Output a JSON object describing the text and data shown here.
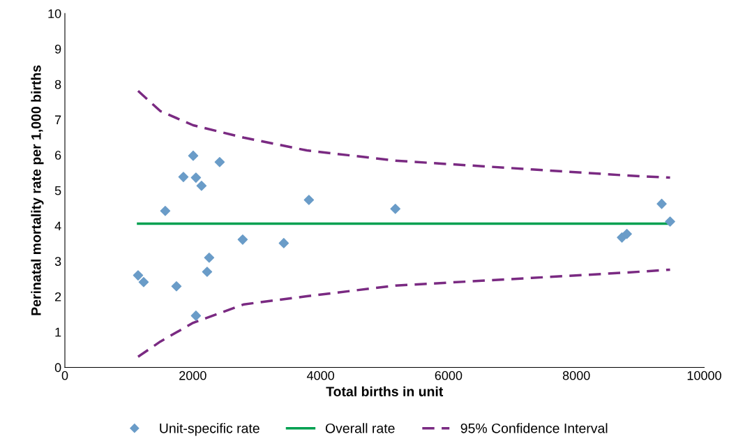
{
  "chart_data": {
    "type": "scatter",
    "xlabel": "Total births in unit",
    "ylabel": "Perinatal mortality rate per 1,000 births",
    "xlim": [
      0,
      10000
    ],
    "ylim": [
      0,
      10
    ],
    "xticks": [
      0,
      2000,
      4000,
      6000,
      8000,
      10000
    ],
    "yticks": [
      0,
      1,
      2,
      3,
      4,
      5,
      6,
      7,
      8,
      9,
      10
    ],
    "grid": false,
    "legend": "bottom",
    "series": [
      {
        "name": "Unit-specific rate",
        "type": "scatter",
        "marker": "diamond",
        "color": "#6a9cc8",
        "x": [
          1145,
          1232,
          1570,
          1745,
          1854,
          2007,
          2050,
          2050,
          2137,
          2225,
          2257,
          2421,
          2781,
          3424,
          3817,
          5169,
          8713,
          8790,
          9335,
          9466
        ],
        "values": [
          2.6,
          2.41,
          4.42,
          2.29,
          5.38,
          5.98,
          5.36,
          1.46,
          5.13,
          2.7,
          3.1,
          5.8,
          3.61,
          3.51,
          4.73,
          4.48,
          3.67,
          3.77,
          4.62,
          4.12
        ]
      },
      {
        "name": "Overall rate",
        "type": "line",
        "marker": "none",
        "line_style": "solid",
        "color": "#00a050",
        "x": [
          1145,
          9466
        ],
        "values": [
          4.06,
          4.06
        ]
      },
      {
        "name": "95% Confidence Interval",
        "type": "line",
        "marker": "none",
        "line_style": "dashed",
        "color": "#7a2a82",
        "x": [
          1145,
          1494,
          2007,
          2800,
          3784,
          5169,
          8800,
          9466
        ],
        "values": [
          7.81,
          7.24,
          6.84,
          6.49,
          6.13,
          5.84,
          5.42,
          5.36
        ]
      },
      {
        "type": "line",
        "marker": "none",
        "line_style": "dashed",
        "color": "#7a2a82",
        "x": [
          1145,
          1494,
          2007,
          2800,
          3784,
          5169,
          8800,
          9466
        ],
        "values": [
          0.3,
          0.73,
          1.26,
          1.78,
          2.01,
          2.31,
          2.68,
          2.76
        ]
      }
    ]
  }
}
